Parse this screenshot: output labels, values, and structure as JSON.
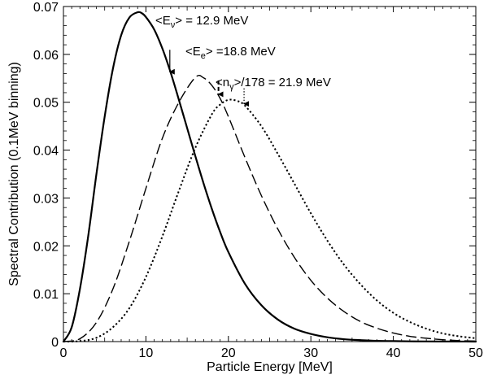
{
  "chart_data": {
    "type": "line",
    "xlabel": "Particle Energy  [MeV]",
    "ylabel": "Spectral Contribution (0.1MeV binning)",
    "xlim": [
      0,
      50
    ],
    "ylim": [
      0,
      0.07
    ],
    "x_ticks": [
      "0",
      "10",
      "20",
      "30",
      "40",
      "50"
    ],
    "y_ticks": [
      "0",
      "0.01",
      "0.02",
      "0.03",
      "0.04",
      "0.05",
      "0.06",
      "0.07"
    ],
    "series": [
      {
        "name": "neutrino",
        "style": "solid",
        "x": [
          0,
          1,
          2,
          3,
          4,
          5,
          6,
          7,
          8,
          9,
          9.5,
          10,
          11,
          12,
          13,
          14,
          15,
          16,
          17,
          18,
          19,
          20,
          22,
          24,
          26,
          28,
          30,
          32,
          34,
          36,
          38,
          40,
          42,
          44,
          46,
          48,
          50
        ],
        "y": [
          0,
          0.003,
          0.011,
          0.022,
          0.035,
          0.047,
          0.057,
          0.064,
          0.0677,
          0.0688,
          0.0686,
          0.0678,
          0.0652,
          0.0612,
          0.0562,
          0.0505,
          0.0446,
          0.0387,
          0.033,
          0.0277,
          0.0229,
          0.0187,
          0.0121,
          0.0076,
          0.0046,
          0.0027,
          0.0016,
          0.0009,
          0.0005,
          0.0003,
          0.00015,
          0.0001,
          5e-05,
          3e-05,
          2e-05,
          1e-05,
          0
        ]
      },
      {
        "name": "electron",
        "style": "dashed",
        "x": [
          0,
          2,
          4,
          6,
          8,
          10,
          12,
          14,
          16,
          17,
          18,
          19,
          20,
          22,
          24,
          26,
          28,
          30,
          32,
          34,
          36,
          38,
          40,
          42,
          44,
          46,
          48,
          50
        ],
        "y": [
          0,
          0.0006,
          0.004,
          0.011,
          0.021,
          0.032,
          0.0425,
          0.05,
          0.0552,
          0.0551,
          0.0535,
          0.0508,
          0.047,
          0.0385,
          0.0305,
          0.0235,
          0.0176,
          0.0128,
          0.0091,
          0.0063,
          0.0042,
          0.0028,
          0.0018,
          0.0011,
          0.0007,
          0.0004,
          0.0002,
          0.0001
        ]
      },
      {
        "name": "gamma",
        "style": "dotted",
        "x": [
          0,
          2,
          4,
          6,
          8,
          10,
          12,
          14,
          16,
          18,
          19,
          20,
          21,
          22,
          24,
          26,
          28,
          30,
          32,
          34,
          36,
          38,
          40,
          42,
          44,
          46,
          48,
          50
        ],
        "y": [
          0,
          0.0001,
          0.0008,
          0.003,
          0.007,
          0.0135,
          0.022,
          0.0315,
          0.0405,
          0.0475,
          0.0495,
          0.0505,
          0.0503,
          0.0493,
          0.045,
          0.0392,
          0.033,
          0.0268,
          0.0211,
          0.0161,
          0.012,
          0.0086,
          0.006,
          0.0041,
          0.0027,
          0.0017,
          0.0011,
          0.0007
        ]
      }
    ],
    "annotations": [
      {
        "id": "nu",
        "prefix": "<E",
        "sub": "ν",
        "suffix": "> = 12.9 MeV",
        "x": 12.9,
        "y": 0.0562,
        "style": "solid"
      },
      {
        "id": "e",
        "prefix": "<E",
        "sub": "e",
        "suffix": "> =18.8 MeV",
        "x": 18.8,
        "y": 0.0515,
        "style": "dashed"
      },
      {
        "id": "g",
        "prefix": "<n",
        "sub": "γ",
        "suffix": ">/178 = 21.9 MeV",
        "x": 21.9,
        "y": 0.0495,
        "style": "dotted"
      }
    ]
  }
}
